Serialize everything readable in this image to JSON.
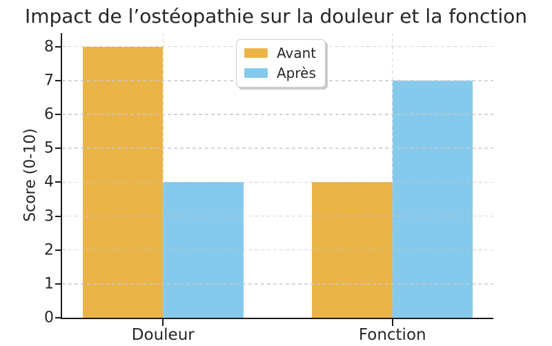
{
  "chart_data": {
    "type": "bar",
    "title": "Impact de l’ostéopathie sur la douleur et la fonction",
    "ylabel": "Score (0-10)",
    "xlabel": "",
    "categories": [
      "Douleur",
      "Fonction"
    ],
    "series": [
      {
        "name": "Avant",
        "color": "#EBB447",
        "values": [
          8,
          4
        ]
      },
      {
        "name": "Après",
        "color": "#85CAEC",
        "values": [
          4,
          7
        ]
      }
    ],
    "ylim": [
      0,
      8.4
    ],
    "yticks": [
      0,
      1,
      2,
      3,
      4,
      5,
      6,
      7,
      8
    ],
    "xlim": [
      -0.44,
      1.44
    ],
    "bar_width": 0.35,
    "grid": true,
    "grid_style": "dashed",
    "legend_position": "upper center"
  },
  "colors": {
    "background": "#ffffff",
    "grid": "#c9c9c9",
    "spine": "#1a1a1a",
    "text": "#262626",
    "legend_border": "#cccccc"
  }
}
